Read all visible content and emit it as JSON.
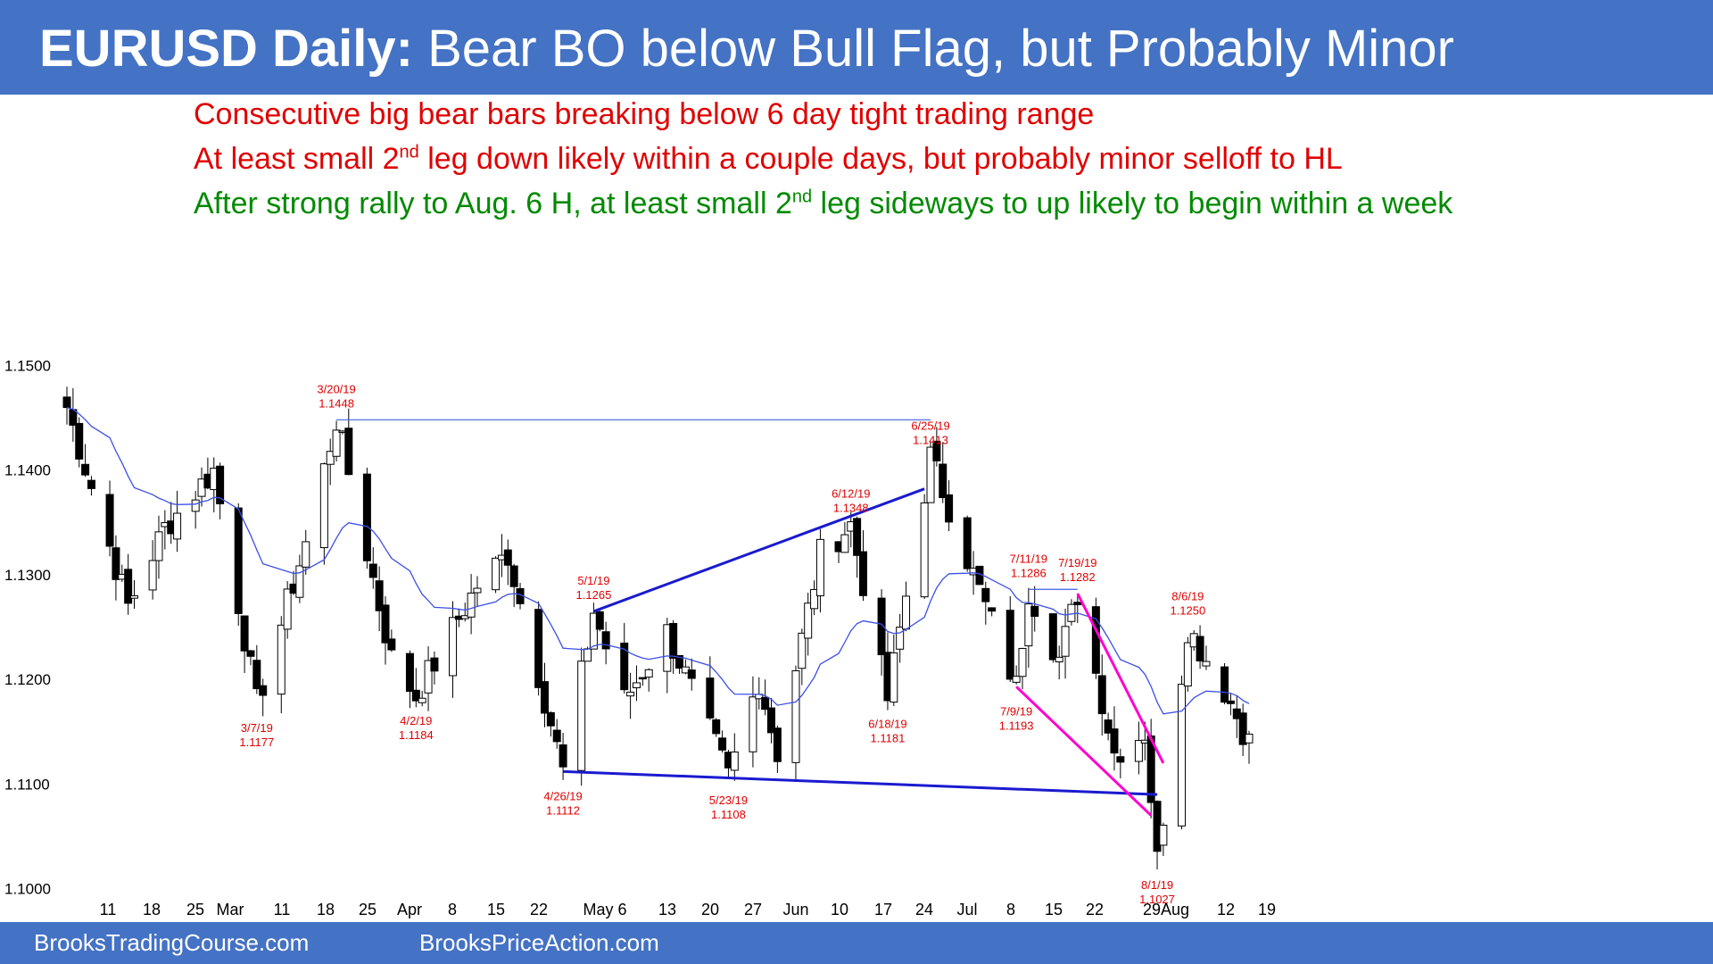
{
  "header": {
    "title_bold": "EURUSD Daily:",
    "title_rest": "Bear BO below Bull Flag, but Probably Minor"
  },
  "notes": [
    {
      "pre": "Consecutive big bear bars breaking below 6 day tight trading range",
      "sup": "",
      "post": "",
      "color": "#E00000"
    },
    {
      "pre": "At least small 2",
      "sup": "nd",
      "post": " leg down likely within a couple days, but probably minor selloff to HL",
      "color": "#E00000"
    },
    {
      "pre": "After strong rally to Aug. 6 H, at least small 2",
      "sup": "nd",
      "post": " leg sideways to up likely to begin within a week",
      "color": "#008A00"
    }
  ],
  "footer": {
    "left": "BrooksTradingCourse.com",
    "right": "BrooksPriceAction.com"
  },
  "colors": {
    "header_bg": "#4472C4",
    "candle": "#000000",
    "ema": "#3B4FE8",
    "trendline": "#1A1AD0",
    "wedge": "#FF00D0",
    "label": "#E00000"
  },
  "chart_data": {
    "type": "candlestick",
    "ylim": [
      1.0975,
      1.1525
    ],
    "yticks": [
      "1.1500",
      "1.1400",
      "1.1300",
      "1.1200",
      "1.1100",
      "1.1000"
    ],
    "x_labels": [
      "11",
      "18",
      "25",
      "Mar",
      "11",
      "18",
      "25",
      "Apr",
      "8",
      "15",
      "22",
      "May 6",
      "13",
      "20",
      "27",
      "Jun",
      "10",
      "17",
      "24",
      "Jul",
      "8",
      "15",
      "22",
      "29Aug",
      "12",
      "19"
    ],
    "start_date": "2019-02-04",
    "end_date": "2019-08-16",
    "pivots": [
      {
        "date": "2019-02-04",
        "price": 1.146
      },
      {
        "date": "2019-02-14",
        "price": 1.127
      },
      {
        "date": "2019-02-20",
        "price": 1.1345
      },
      {
        "date": "2019-02-28",
        "price": 1.14
      },
      {
        "date": "2019-03-07",
        "price": 1.1177
      },
      {
        "date": "2019-03-15",
        "price": 1.133
      },
      {
        "date": "2019-03-20",
        "price": 1.1448
      },
      {
        "date": "2019-03-29",
        "price": 1.122
      },
      {
        "date": "2019-04-02",
        "price": 1.1184
      },
      {
        "date": "2019-04-12",
        "price": 1.129
      },
      {
        "date": "2019-04-17",
        "price": 1.132
      },
      {
        "date": "2019-04-26",
        "price": 1.1112
      },
      {
        "date": "2019-05-01",
        "price": 1.1265
      },
      {
        "date": "2019-05-06",
        "price": 1.118
      },
      {
        "date": "2019-05-13",
        "price": 1.1245
      },
      {
        "date": "2019-05-23",
        "price": 1.1108
      },
      {
        "date": "2019-05-28",
        "price": 1.12
      },
      {
        "date": "2019-05-31",
        "price": 1.113
      },
      {
        "date": "2019-06-07",
        "price": 1.132
      },
      {
        "date": "2019-06-12",
        "price": 1.1348
      },
      {
        "date": "2019-06-18",
        "price": 1.1181
      },
      {
        "date": "2019-06-25",
        "price": 1.1413
      },
      {
        "date": "2019-07-02",
        "price": 1.13
      },
      {
        "date": "2019-07-09",
        "price": 1.1193
      },
      {
        "date": "2019-07-11",
        "price": 1.1286
      },
      {
        "date": "2019-07-16",
        "price": 1.122
      },
      {
        "date": "2019-07-19",
        "price": 1.1282
      },
      {
        "date": "2019-07-25",
        "price": 1.113
      },
      {
        "date": "2019-07-30",
        "price": 1.115
      },
      {
        "date": "2019-08-01",
        "price": 1.1027
      },
      {
        "date": "2019-08-06",
        "price": 1.125
      },
      {
        "date": "2019-08-12",
        "price": 1.119
      },
      {
        "date": "2019-08-16",
        "price": 1.114
      }
    ],
    "annotations": [
      {
        "date": "3/20/19",
        "price": "1.1448",
        "pos": "above"
      },
      {
        "date": "3/7/19",
        "price": "1.1177",
        "pos": "below"
      },
      {
        "date": "4/2/19",
        "price": "1.1184",
        "pos": "below"
      },
      {
        "date": "4/26/19",
        "price": "1.1112",
        "pos": "below"
      },
      {
        "date": "5/1/19",
        "price": "1.1265",
        "pos": "above"
      },
      {
        "date": "5/23/19",
        "price": "1.1108",
        "pos": "below"
      },
      {
        "date": "6/12/19",
        "price": "1.1348",
        "pos": "above"
      },
      {
        "date": "6/18/19",
        "price": "1.1181",
        "pos": "below"
      },
      {
        "date": "6/25/19",
        "price": "1.1413",
        "pos": "above"
      },
      {
        "date": "7/9/19",
        "price": "1.1193",
        "pos": "below"
      },
      {
        "date": "7/11/19",
        "price": "1.1286",
        "pos": "above"
      },
      {
        "date": "7/19/19",
        "price": "1.1282",
        "pos": "above"
      },
      {
        "date": "8/1/19",
        "price": "1.1027",
        "pos": "below"
      },
      {
        "date": "8/6/19",
        "price": "1.1250",
        "pos": "above"
      }
    ],
    "lines": [
      {
        "name": "resistance-line",
        "color": "#4060E0",
        "width": 1.2,
        "from": {
          "date": "2019-03-20",
          "price": 1.1448
        },
        "to": {
          "date": "2019-06-25",
          "price": 1.1448
        }
      },
      {
        "name": "upper-trendline",
        "color": "#1A1AD0",
        "width": 3,
        "from": {
          "date": "2019-05-01",
          "price": 1.1265
        },
        "to": {
          "date": "2019-06-24",
          "price": 1.1382
        }
      },
      {
        "name": "lower-trendline",
        "color": "#1A1AD0",
        "width": 3,
        "from": {
          "date": "2019-04-26",
          "price": 1.1112
        },
        "to": {
          "date": "2019-08-01",
          "price": 1.109
        }
      },
      {
        "name": "range-top-line",
        "color": "#4060E0",
        "width": 1.2,
        "from": {
          "date": "2019-07-11",
          "price": 1.1286
        },
        "to": {
          "date": "2019-07-19",
          "price": 1.1286
        }
      },
      {
        "name": "wedge-upper-line",
        "color": "#FF00D0",
        "width": 3,
        "from": {
          "date": "2019-07-19",
          "price": 1.1282
        },
        "to": {
          "date": "2019-08-02",
          "price": 1.112
        }
      },
      {
        "name": "wedge-lower-line",
        "color": "#FF00D0",
        "width": 3,
        "from": {
          "date": "2019-07-09",
          "price": 1.1193
        },
        "to": {
          "date": "2019-07-31",
          "price": 1.107
        }
      }
    ]
  }
}
